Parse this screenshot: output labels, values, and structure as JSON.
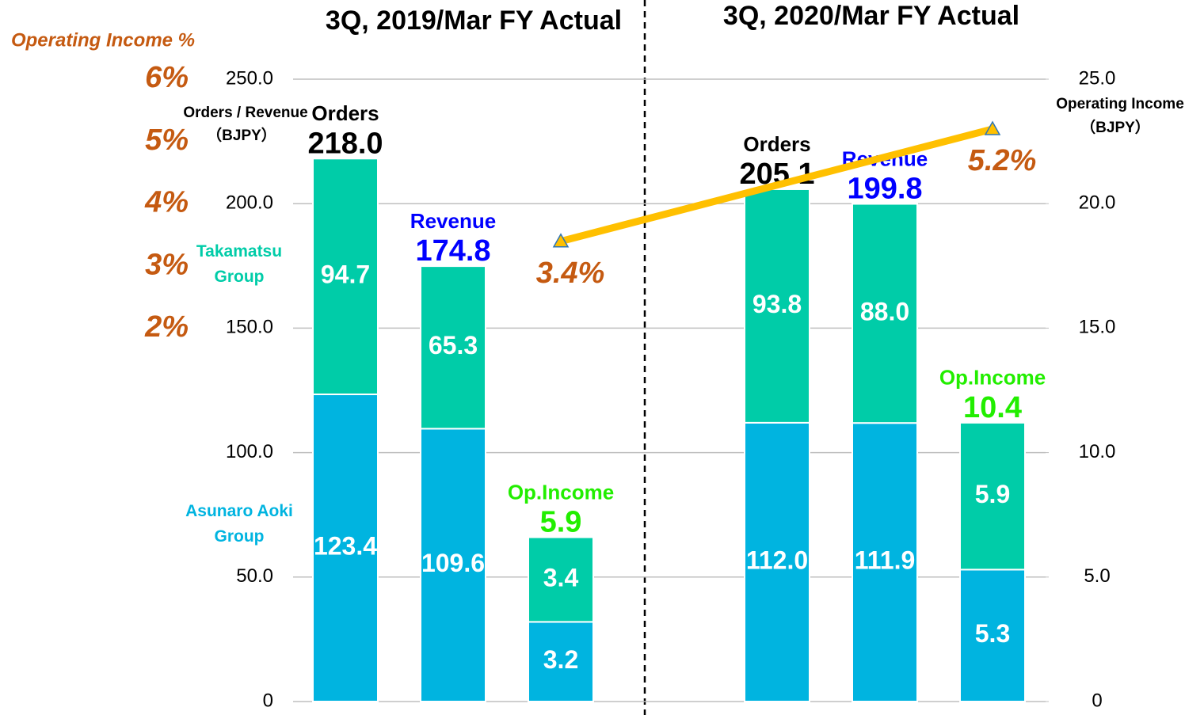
{
  "chart_data": {
    "type": "bar",
    "stacked": true,
    "y_label": "Orders / Revenue",
    "y_unit": "（BJPY）",
    "y2_label": "Operating Income",
    "y2_unit": "（BJPY）",
    "y3_label": "Operating Income %",
    "ylim": [
      0,
      250
    ],
    "yticks": [
      0,
      {
        "value": 50,
        "label": "50.0"
      },
      {
        "value": 100,
        "label": "100.0"
      },
      {
        "value": 150,
        "label": "150.0"
      },
      {
        "value": 200,
        "label": "200.0"
      },
      {
        "value": 250,
        "label": "250.0"
      }
    ],
    "y2lim": [
      0,
      25
    ],
    "y2ticks": [
      0,
      {
        "value": 5,
        "label": "5.0"
      },
      {
        "value": 10,
        "label": "10.0"
      },
      {
        "value": 15,
        "label": "15.0"
      },
      {
        "value": 20,
        "label": "20.0"
      },
      {
        "value": 25,
        "label": "25.0"
      }
    ],
    "y3lim": [
      2,
      6
    ],
    "y3ticks": [
      {
        "value": 6,
        "label": "6%"
      },
      {
        "value": 5,
        "label": "5%"
      },
      {
        "value": 4,
        "label": "4%"
      },
      {
        "value": 3,
        "label": "3%"
      },
      {
        "value": 2,
        "label": "2%"
      }
    ],
    "grid": true,
    "bar_axes": [
      "y",
      "y",
      "y2"
    ],
    "label_colors": [
      "#000000",
      "#0000ff",
      "#22ee00"
    ],
    "series": [
      {
        "name": "Asunaro Aoki Group",
        "color": "#00b4e0"
      },
      {
        "name": "Takamatsu Group",
        "color": "#00cca8"
      }
    ],
    "groups": [
      {
        "title": "3Q, 2019/Mar FY Actual",
        "categories": [
          "Orders",
          "Revenue",
          "Op.Income"
        ],
        "totals": [
          218.0,
          174.8,
          5.9
        ],
        "total_labels": [
          "218.0",
          "174.8",
          "5.9"
        ],
        "values": [
          [
            123.4,
            109.6,
            3.2
          ],
          [
            94.7,
            65.3,
            3.4
          ]
        ],
        "value_labels": [
          [
            "123.4",
            "109.6",
            "3.2"
          ],
          [
            "94.7",
            "65.3",
            "3.4"
          ]
        ]
      },
      {
        "title": "3Q, 2020/Mar FY Actual",
        "categories": [
          "Orders",
          "Revenue",
          "Op.Income"
        ],
        "totals": [
          205.1,
          199.8,
          10.4
        ],
        "total_labels": [
          "205.1",
          "199.8",
          "10.4"
        ],
        "values": [
          [
            112.0,
            111.9,
            5.3
          ],
          [
            93.8,
            88.0,
            5.9
          ]
        ],
        "value_labels": [
          [
            "112.0",
            "111.9",
            "5.3"
          ],
          [
            "93.8",
            "88.0",
            "5.9"
          ]
        ]
      }
    ],
    "line": {
      "values": [
        3.4,
        5.2
      ],
      "value_labels": [
        "3.4%",
        "5.2%"
      ],
      "color": "#ffc000",
      "label_color": "#c55a11"
    }
  }
}
